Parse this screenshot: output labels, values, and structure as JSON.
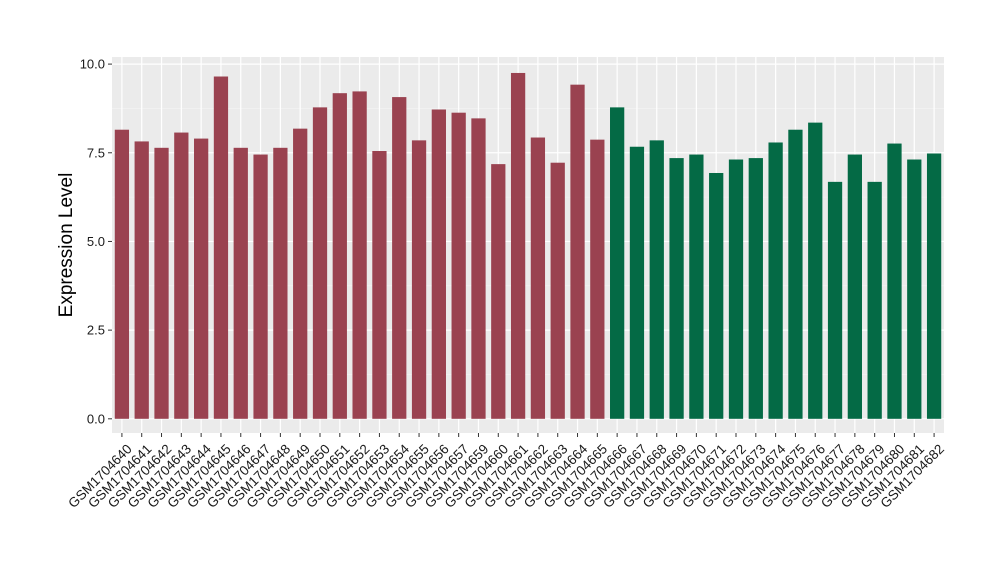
{
  "chart_data": {
    "type": "bar",
    "title": "",
    "xlabel": "",
    "ylabel": "Expression Level",
    "ylim": [
      -0.4,
      10.2
    ],
    "yticks": [
      0.0,
      2.5,
      5.0,
      7.5,
      10.0
    ],
    "ytick_labels": [
      "0.0",
      "2.5",
      "5.0",
      "7.5",
      "10.0"
    ],
    "grid": true,
    "legend": "none",
    "categories": [
      "GSM1704640",
      "GSM1704641",
      "GSM1704642",
      "GSM1704643",
      "GSM1704644",
      "GSM1704645",
      "GSM1704646",
      "GSM1704647",
      "GSM1704648",
      "GSM1704649",
      "GSM1704650",
      "GSM1704651",
      "GSM1704652",
      "GSM1704653",
      "GSM1704654",
      "GSM1704655",
      "GSM1704656",
      "GSM1704657",
      "GSM1704659",
      "GSM1704660",
      "GSM1704661",
      "GSM1704662",
      "GSM1704663",
      "GSM1704664",
      "GSM1704665",
      "GSM1704666",
      "GSM1704667",
      "GSM1704668",
      "GSM1704669",
      "GSM1704670",
      "GSM1704671",
      "GSM1704672",
      "GSM1704673",
      "GSM1704674",
      "GSM1704675",
      "GSM1704676",
      "GSM1704677",
      "GSM1704678",
      "GSM1704679",
      "GSM1704680",
      "GSM1704681",
      "GSM1704682"
    ],
    "values": [
      8.15,
      7.82,
      7.64,
      8.07,
      7.9,
      9.65,
      7.64,
      7.45,
      7.64,
      8.18,
      8.78,
      9.18,
      9.23,
      7.55,
      9.07,
      7.85,
      8.72,
      8.63,
      8.47,
      7.18,
      9.75,
      7.93,
      7.22,
      9.42,
      7.87,
      8.78,
      7.67,
      7.85,
      7.35,
      7.45,
      6.93,
      7.31,
      7.35,
      7.79,
      8.15,
      8.35,
      6.68,
      7.45,
      6.68,
      7.76,
      7.31,
      7.48
    ],
    "groups": [
      1,
      1,
      1,
      1,
      1,
      1,
      1,
      1,
      1,
      1,
      1,
      1,
      1,
      1,
      1,
      1,
      1,
      1,
      1,
      1,
      1,
      1,
      1,
      1,
      1,
      2,
      2,
      2,
      2,
      2,
      2,
      2,
      2,
      2,
      2,
      2,
      2,
      2,
      2,
      2,
      2,
      2
    ],
    "colors": {
      "group1": "#9a4250",
      "group2": "#046a45",
      "panel_bg": "#ebebeb",
      "grid_major": "#ffffff",
      "grid_minor": "#f5f5f5"
    }
  }
}
